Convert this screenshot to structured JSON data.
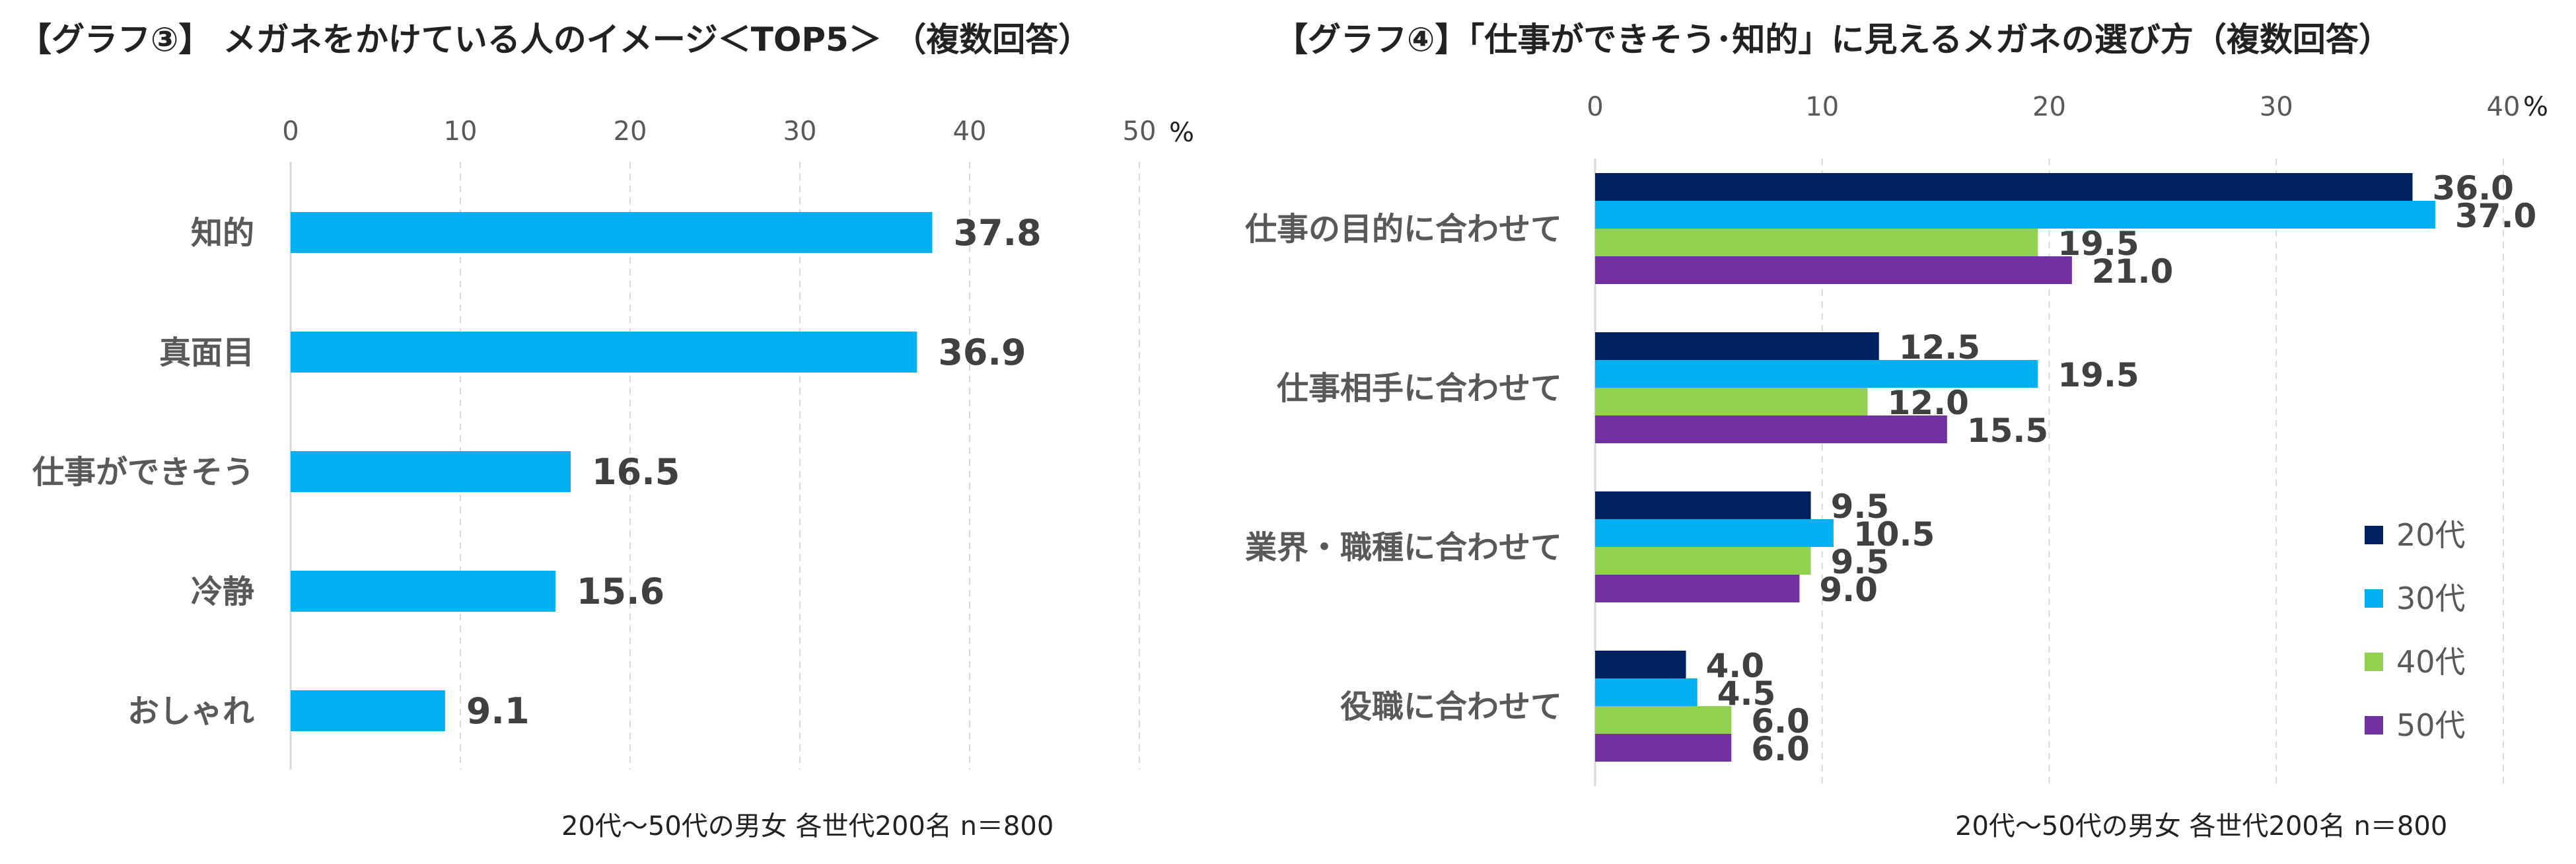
{
  "chart_data": [
    {
      "type": "bar",
      "orientation": "horizontal",
      "title": "【グラフ③】 メガネをかけている人のイメージ＜TOP5＞ （複数回答）",
      "categories": [
        "知的",
        "真面目",
        "仕事ができそう",
        "冷静",
        "おしゃれ"
      ],
      "values": [
        37.8,
        36.9,
        16.5,
        15.6,
        9.1
      ],
      "value_labels": [
        "37.8",
        "36.9",
        "16.5",
        "15.6",
        "9.1"
      ],
      "xlim": [
        0,
        50
      ],
      "xticks": [
        "0",
        "10",
        "20",
        "30",
        "40",
        "50"
      ],
      "unit": "%",
      "color": "#00b0f0",
      "grid": true,
      "note": "20代～50代の男女 各世代200名 n＝800"
    },
    {
      "type": "bar",
      "orientation": "horizontal",
      "title": "【グラフ④】「仕事ができそう･知的」に見えるメガネの選び方（複数回答）",
      "categories": [
        "仕事の目的に合わせて",
        "仕事相手に合わせて",
        "業界・職種に合わせて",
        "役職に合わせて"
      ],
      "series": [
        {
          "name": "20代",
          "color": "#002060",
          "values": [
            36.0,
            12.5,
            9.5,
            4.0
          ],
          "labels": [
            "36.0",
            "12.5",
            "9.5",
            "4.0"
          ]
        },
        {
          "name": "30代",
          "color": "#00b0f0",
          "values": [
            37.0,
            19.5,
            10.5,
            4.5
          ],
          "labels": [
            "37.0",
            "19.5",
            "10.5",
            "4.5"
          ]
        },
        {
          "name": "40代",
          "color": "#92d050",
          "values": [
            19.5,
            12.0,
            9.5,
            6.0
          ],
          "labels": [
            "19.5",
            "12.0",
            "9.5",
            "6.0"
          ]
        },
        {
          "name": "50代",
          "color": "#7030a0",
          "values": [
            21.0,
            15.5,
            9.0,
            6.0
          ],
          "labels": [
            "21.0",
            "15.5",
            "9.0",
            "6.0"
          ]
        }
      ],
      "xlim": [
        0,
        40
      ],
      "xticks": [
        "0",
        "10",
        "20",
        "30",
        "40"
      ],
      "unit": "%",
      "legend": "right",
      "grid": true,
      "note": "20代～50代の男女 各世代200名 n＝800"
    }
  ]
}
